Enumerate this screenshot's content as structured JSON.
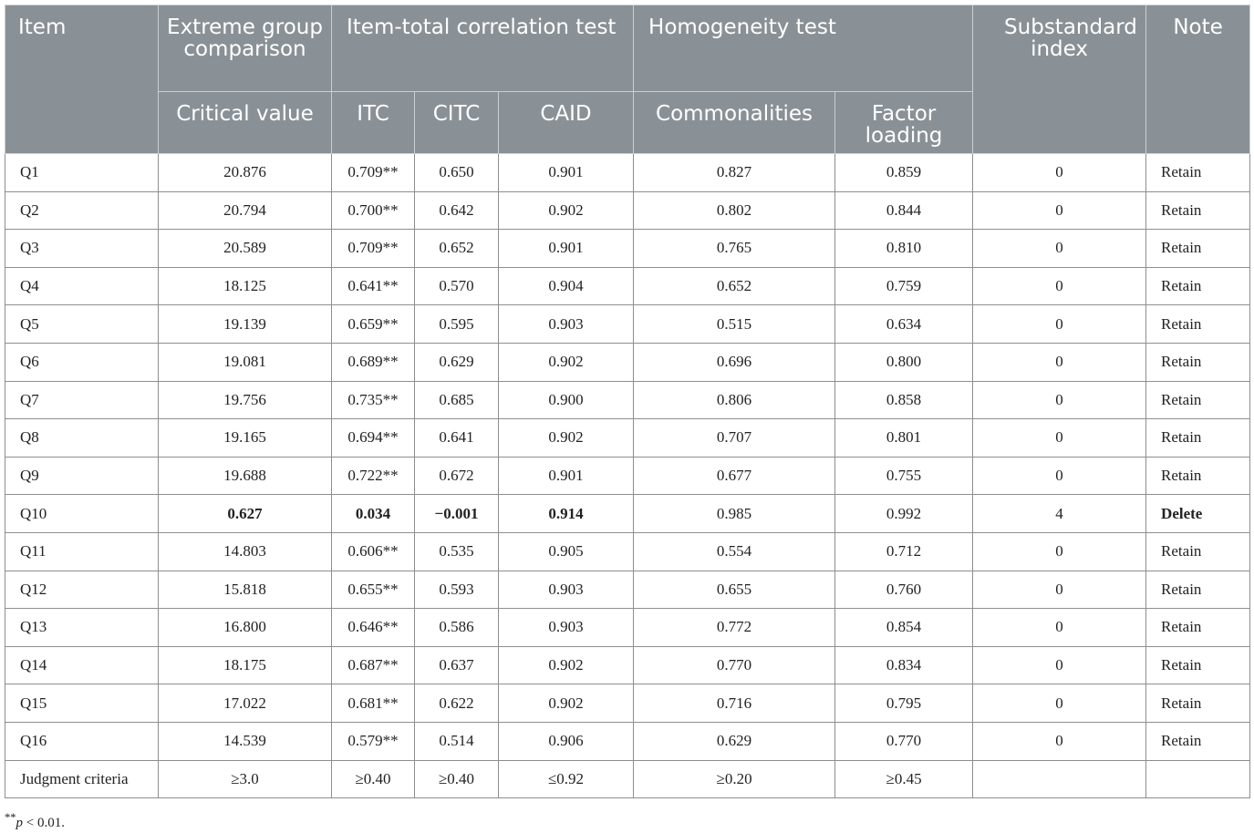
{
  "header": {
    "item": "Item",
    "extreme": "Extreme group comparison",
    "itc_test": "Item-total correlation test",
    "homogeneity": "Homogeneity test",
    "substandard": "Substandard index",
    "note": "Note",
    "critical": "Critical value",
    "itc": "ITC",
    "citc": "CITC",
    "caid": "CAID",
    "commonalities": "Commonalities",
    "factor_loading": "Factor loading"
  },
  "rows": [
    {
      "item": "Q1",
      "critical": "20.876",
      "itc": "0.709**",
      "citc": "0.650",
      "caid": "0.901",
      "comm": "0.827",
      "factor": "0.859",
      "sub": "0",
      "note": "Retain"
    },
    {
      "item": "Q2",
      "critical": "20.794",
      "itc": "0.700**",
      "citc": "0.642",
      "caid": "0.902",
      "comm": "0.802",
      "factor": "0.844",
      "sub": "0",
      "note": "Retain"
    },
    {
      "item": "Q3",
      "critical": "20.589",
      "itc": "0.709**",
      "citc": "0.652",
      "caid": "0.901",
      "comm": "0.765",
      "factor": "0.810",
      "sub": "0",
      "note": "Retain"
    },
    {
      "item": "Q4",
      "critical": "18.125",
      "itc": "0.641**",
      "citc": "0.570",
      "caid": "0.904",
      "comm": "0.652",
      "factor": "0.759",
      "sub": "0",
      "note": "Retain"
    },
    {
      "item": "Q5",
      "critical": "19.139",
      "itc": "0.659**",
      "citc": "0.595",
      "caid": "0.903",
      "comm": "0.515",
      "factor": "0.634",
      "sub": "0",
      "note": "Retain"
    },
    {
      "item": "Q6",
      "critical": "19.081",
      "itc": "0.689**",
      "citc": "0.629",
      "caid": "0.902",
      "comm": "0.696",
      "factor": "0.800",
      "sub": "0",
      "note": "Retain"
    },
    {
      "item": "Q7",
      "critical": "19.756",
      "itc": "0.735**",
      "citc": "0.685",
      "caid": "0.900",
      "comm": "0.806",
      "factor": "0.858",
      "sub": "0",
      "note": "Retain"
    },
    {
      "item": "Q8",
      "critical": "19.165",
      "itc": "0.694**",
      "citc": "0.641",
      "caid": "0.902",
      "comm": "0.707",
      "factor": "0.801",
      "sub": "0",
      "note": "Retain"
    },
    {
      "item": "Q9",
      "critical": "19.688",
      "itc": "0.722**",
      "citc": "0.672",
      "caid": "0.901",
      "comm": "0.677",
      "factor": "0.755",
      "sub": "0",
      "note": "Retain"
    },
    {
      "item": "Q10",
      "critical": "0.627",
      "itc": "0.034",
      "citc": "−0.001",
      "caid": "0.914",
      "comm": "0.985",
      "factor": "0.992",
      "sub": "4",
      "note": "Delete"
    },
    {
      "item": "Q11",
      "critical": "14.803",
      "itc": "0.606**",
      "citc": "0.535",
      "caid": "0.905",
      "comm": "0.554",
      "factor": "0.712",
      "sub": "0",
      "note": "Retain"
    },
    {
      "item": "Q12",
      "critical": "15.818",
      "itc": "0.655**",
      "citc": "0.593",
      "caid": "0.903",
      "comm": "0.655",
      "factor": "0.760",
      "sub": "0",
      "note": "Retain"
    },
    {
      "item": "Q13",
      "critical": "16.800",
      "itc": "0.646**",
      "citc": "0.586",
      "caid": "0.903",
      "comm": "0.772",
      "factor": "0.854",
      "sub": "0",
      "note": "Retain"
    },
    {
      "item": "Q14",
      "critical": "18.175",
      "itc": "0.687**",
      "citc": "0.637",
      "caid": "0.902",
      "comm": "0.770",
      "factor": "0.834",
      "sub": "0",
      "note": "Retain"
    },
    {
      "item": "Q15",
      "critical": "17.022",
      "itc": "0.681**",
      "citc": "0.622",
      "caid": "0.902",
      "comm": "0.716",
      "factor": "0.795",
      "sub": "0",
      "note": "Retain"
    },
    {
      "item": "Q16",
      "critical": "14.539",
      "itc": "0.579**",
      "citc": "0.514",
      "caid": "0.906",
      "comm": "0.629",
      "factor": "0.770",
      "sub": "0",
      "note": "Retain"
    }
  ],
  "criteria": {
    "label": "Judgment criteria",
    "critical": "≥3.0",
    "itc": "≥0.40",
    "citc": "≥0.40",
    "caid": "≤0.92",
    "comm": "≥0.20",
    "factor": "≥0.45"
  },
  "footnote": "**p < 0.01."
}
